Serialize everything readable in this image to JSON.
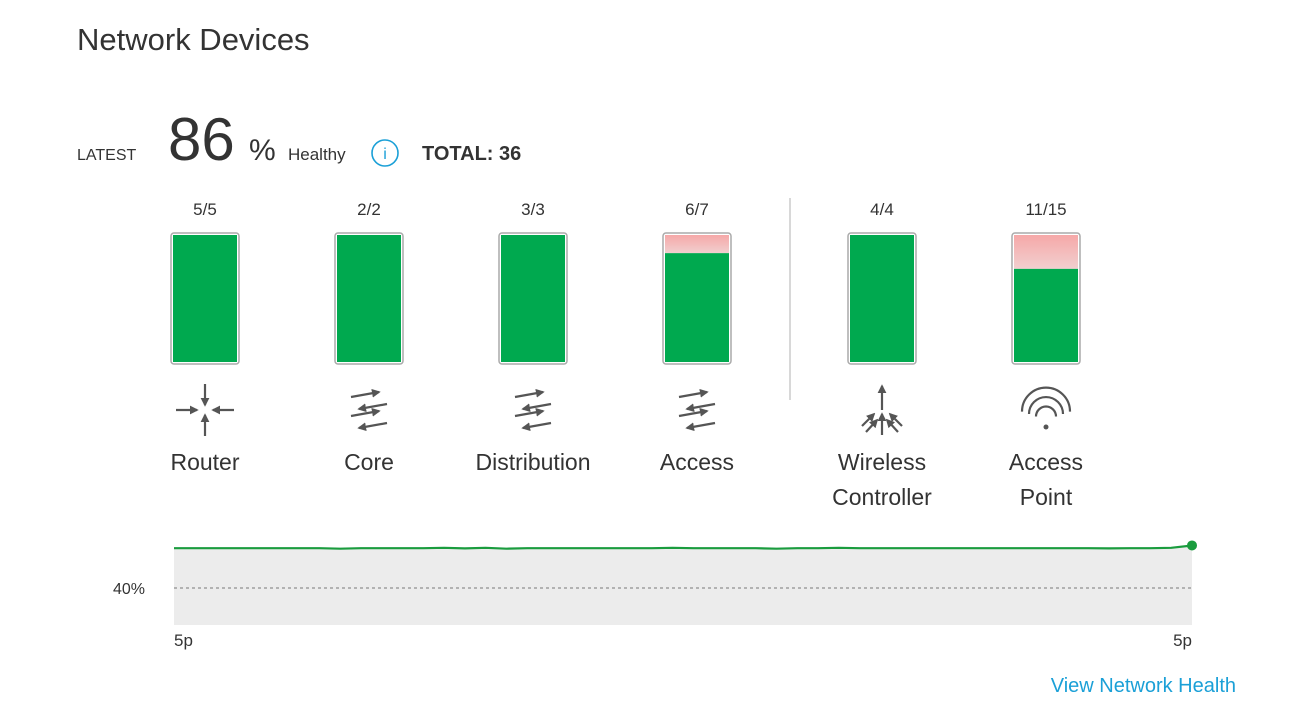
{
  "header": {
    "title": "Network Devices"
  },
  "summary": {
    "latest_label": "LATEST",
    "health_percent": 86,
    "percent_unit": "%",
    "health_label": "Healthy",
    "info_icon": "i",
    "total": "TOTAL: 36"
  },
  "device_groups": [
    {
      "ratio": "5/5",
      "healthy": 5,
      "total": 5,
      "label": [
        "Router"
      ]
    },
    {
      "ratio": "2/2",
      "healthy": 2,
      "total": 2,
      "label": [
        "Core"
      ]
    },
    {
      "ratio": "3/3",
      "healthy": 3,
      "total": 3,
      "label": [
        "Distribution"
      ]
    },
    {
      "ratio": "6/7",
      "healthy": 6,
      "total": 7,
      "label": [
        "Access"
      ]
    },
    {
      "ratio": "4/4",
      "healthy": 4,
      "total": 4,
      "label": [
        "Wireless",
        "Controller"
      ]
    },
    {
      "ratio": "11/15",
      "healthy": 11,
      "total": 15,
      "label": [
        "Access",
        "Point"
      ]
    }
  ],
  "trend_chart": {
    "type": "area",
    "color": "#1a9c3e",
    "values": [
      83,
      83,
      83,
      83,
      83,
      83,
      83,
      83,
      82.5,
      83,
      83,
      83,
      83,
      83.5,
      82.8,
      83.5,
      82.5,
      83,
      83,
      83,
      83,
      83,
      83,
      83,
      83.5,
      83,
      83,
      83,
      83,
      82.5,
      83,
      83,
      83.5,
      83,
      83,
      83,
      83,
      83,
      83,
      83,
      83,
      83,
      83,
      83,
      83,
      82.8,
      83,
      83,
      83.5,
      86
    ],
    "ylim": [
      0,
      100
    ],
    "yticks": [
      {
        "value": 40,
        "label": "40%"
      }
    ],
    "x_tick_labels": [
      "5p",
      "5p"
    ]
  },
  "footer": {
    "link": "View Network Health"
  }
}
